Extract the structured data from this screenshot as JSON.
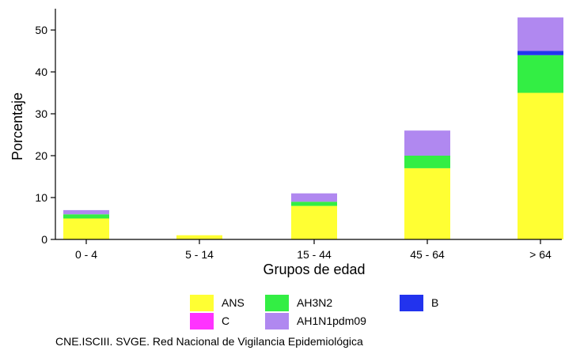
{
  "chart_data": {
    "type": "bar",
    "stacked": true,
    "categories": [
      "0 - 4",
      "5 - 14",
      "15 - 44",
      "45 - 64",
      "> 64"
    ],
    "series": [
      {
        "name": "ANS",
        "color": "#ffff33",
        "values": [
          5,
          1,
          8,
          17,
          35
        ]
      },
      {
        "name": "AH3N2",
        "color": "#33ee44",
        "values": [
          1,
          0,
          1,
          3,
          9
        ]
      },
      {
        "name": "B",
        "color": "#2233ee",
        "values": [
          0,
          0,
          0,
          0,
          1
        ]
      },
      {
        "name": "C",
        "color": "#ff33ff",
        "values": [
          0,
          0,
          0,
          0,
          0
        ]
      },
      {
        "name": "AH1N1pdm09",
        "color": "#b088f0",
        "values": [
          1,
          0,
          2,
          6,
          8
        ]
      }
    ],
    "xlabel": "Grupos de edad",
    "ylabel": "Porcentaje",
    "yticks": [
      0,
      10,
      20,
      30,
      40,
      50
    ],
    "ylim": [
      0,
      55
    ],
    "grid": false,
    "legend_position": "bottom"
  },
  "source": "CNE.ISCIII. SVGE. Red Nacional de Vigilancia Epidemiológica"
}
